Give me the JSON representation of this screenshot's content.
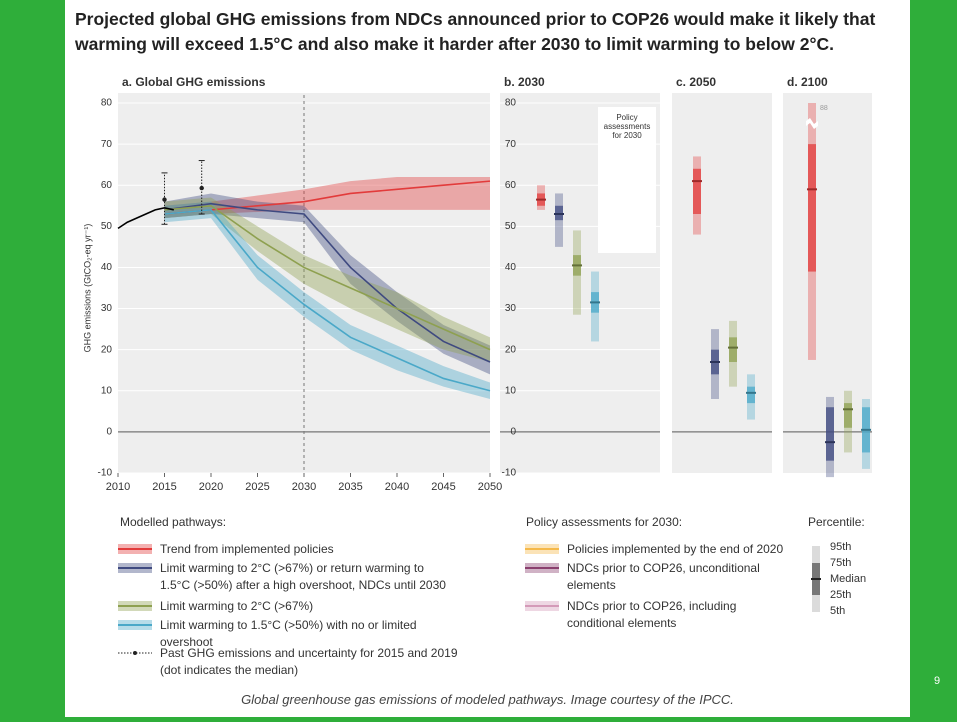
{
  "title": "Projected global GHG emissions from NDCs announced prior to COP26 would make it likely that warming will exceed 1.5°C and also make it harder after 2030 to limit warming to below 2°C.",
  "caption": "Global greenhouse gas emissions of modeled pathways. Image courtesy of the IPCC.",
  "slide_number": "9",
  "percentile_legend": {
    "title": "Percentile:",
    "labels": [
      "95th",
      "75th",
      "Median",
      "25th",
      "5th"
    ]
  },
  "chart_data": [
    {
      "type": "line",
      "title": "a. Global GHG emissions",
      "ylabel": "GHG emissions (GtCO₂-eq yr⁻¹)",
      "xlim": [
        2010,
        2050
      ],
      "xticks": [
        2010,
        2015,
        2020,
        2025,
        2030,
        2035,
        2040,
        2045,
        2050
      ],
      "ylim": [
        -10,
        80
      ],
      "yticks": [
        -10,
        0,
        10,
        20,
        30,
        40,
        50,
        60,
        70,
        80
      ],
      "grid": true,
      "reference_line_x": 2030,
      "legend_title": "Modelled pathways:",
      "x": [
        2015,
        2020,
        2025,
        2030,
        2035,
        2040,
        2045,
        2050
      ],
      "series": [
        {
          "name": "Trend from implemented policies",
          "color": "#e23b3b",
          "values": [
            53,
            54,
            55,
            56,
            58,
            59,
            60,
            61
          ],
          "lower": [
            52,
            53,
            53.5,
            54,
            54,
            54,
            54,
            54
          ],
          "upper": [
            55,
            56,
            57.5,
            59,
            61,
            62,
            62,
            62
          ]
        },
        {
          "name": "Limit warming to 2°C (>67%) or return warming to 1.5°C (>50%) after a high overshoot, NDCs until 2030",
          "color": "#3f4a80",
          "values": [
            54,
            55.5,
            54,
            53,
            40,
            30,
            22,
            17
          ],
          "lower": [
            52,
            53,
            52,
            51,
            36,
            27,
            19,
            14
          ],
          "upper": [
            56,
            58,
            56,
            55,
            43,
            34,
            26,
            21
          ]
        },
        {
          "name": "Limit warming to 2°C (>67%)",
          "color": "#8ea050",
          "values": [
            54,
            55,
            47,
            40,
            35,
            30,
            25,
            20
          ],
          "lower": [
            52,
            53,
            44,
            36,
            30,
            25,
            20,
            17
          ],
          "upper": [
            56,
            57,
            50,
            43,
            38,
            34,
            28,
            23
          ]
        },
        {
          "name": "Limit warming to 1.5°C (>50%) with no or limited overshoot",
          "color": "#4aa8c8",
          "values": [
            53,
            54,
            40,
            31,
            23,
            18,
            13,
            10
          ],
          "lower": [
            51,
            52,
            37,
            28,
            20,
            15,
            11,
            8
          ],
          "upper": [
            55,
            56,
            43,
            34,
            26,
            21,
            16,
            12
          ]
        }
      ],
      "history": {
        "x": [
          2010,
          2011,
          2012,
          2013,
          2014,
          2015,
          2016
        ],
        "values": [
          49.5,
          51,
          52,
          53,
          54,
          54.5,
          54
        ],
        "color": "#000000"
      },
      "past": {
        "name": "Past GHG emissions and uncertainty for 2015 and 2019 (dot indicates the median)",
        "x": [
          2015,
          2019
        ],
        "values": [
          56.5,
          59.3
        ],
        "lower": [
          50.5,
          53
        ],
        "upper": [
          63,
          66
        ]
      }
    },
    {
      "type": "box",
      "title": "b. 2030",
      "ylim": [
        -10,
        80
      ],
      "yticks": [
        -10,
        0,
        10,
        20,
        30,
        40,
        50,
        60,
        70,
        80
      ],
      "grid": true,
      "annotation": "Policy assessments for 2030",
      "legend_title": "Policy assessments for 2030:",
      "legend": [
        {
          "name": "Policies implemented by the end of 2020",
          "color": "#f5b94a"
        },
        {
          "name": "NDCs prior to COP26, unconditional elements",
          "color": "#8a3f6e"
        },
        {
          "name": "NDCs prior to COP26, including conditional elements",
          "color": "#d49ab8"
        }
      ],
      "boxes": [
        {
          "color": "#e23b3b",
          "p5": 54,
          "p25": 55,
          "median": 56.5,
          "p75": 58,
          "p95": 60
        },
        {
          "color": "#3f4a80",
          "p5": 45,
          "p25": 51.5,
          "median": 53,
          "p75": 55,
          "p95": 58
        },
        {
          "color": "#8ea050",
          "p5": 28.5,
          "p25": 38,
          "median": 40.5,
          "p75": 43,
          "p95": 49
        },
        {
          "color": "#4aa8c8",
          "p5": 22,
          "p25": 29,
          "median": 31.5,
          "p75": 34,
          "p95": 39
        },
        {
          "color": "#f5b94a",
          "p5": 52,
          "p25": 54,
          "median": 57,
          "p75": 58,
          "p95": 60
        },
        {
          "color": "#8a3f6e",
          "p5": 50,
          "p25": 51.5,
          "median": 53,
          "p75": 55,
          "p95": 57
        },
        {
          "color": "#d49ab8",
          "p5": 47,
          "p25": 48.5,
          "median": 50,
          "p75": 52,
          "p95": 55
        }
      ]
    },
    {
      "type": "box",
      "title": "c. 2050",
      "ylim": [
        -10,
        80
      ],
      "boxes": [
        {
          "color": "#e23b3b",
          "p5": 48,
          "p25": 53,
          "median": 61,
          "p75": 64,
          "p95": 67
        },
        {
          "color": "#3f4a80",
          "p5": 8,
          "p25": 14,
          "median": 17,
          "p75": 20,
          "p95": 25
        },
        {
          "color": "#8ea050",
          "p5": 11,
          "p25": 17,
          "median": 20.5,
          "p75": 23,
          "p95": 27
        },
        {
          "color": "#4aa8c8",
          "p5": 3,
          "p25": 7,
          "median": 9.5,
          "p75": 11,
          "p95": 14
        }
      ]
    },
    {
      "type": "box",
      "title": "d. 2100",
      "ylim": [
        -10,
        80
      ],
      "boxes": [
        {
          "color": "#e23b3b",
          "p5": 17.5,
          "p25": 39,
          "median": 59,
          "p75": 70,
          "p95": 88
        },
        {
          "color": "#3f4a80",
          "p5": -11,
          "p25": -7,
          "median": -2.5,
          "p75": 6,
          "p95": 8.5
        },
        {
          "color": "#8ea050",
          "p5": -5,
          "p25": 1,
          "median": 5.5,
          "p75": 7,
          "p95": 10
        },
        {
          "color": "#4aa8c8",
          "p5": -9,
          "p25": -5,
          "median": 0.5,
          "p75": 6,
          "p95": 8
        }
      ]
    }
  ]
}
